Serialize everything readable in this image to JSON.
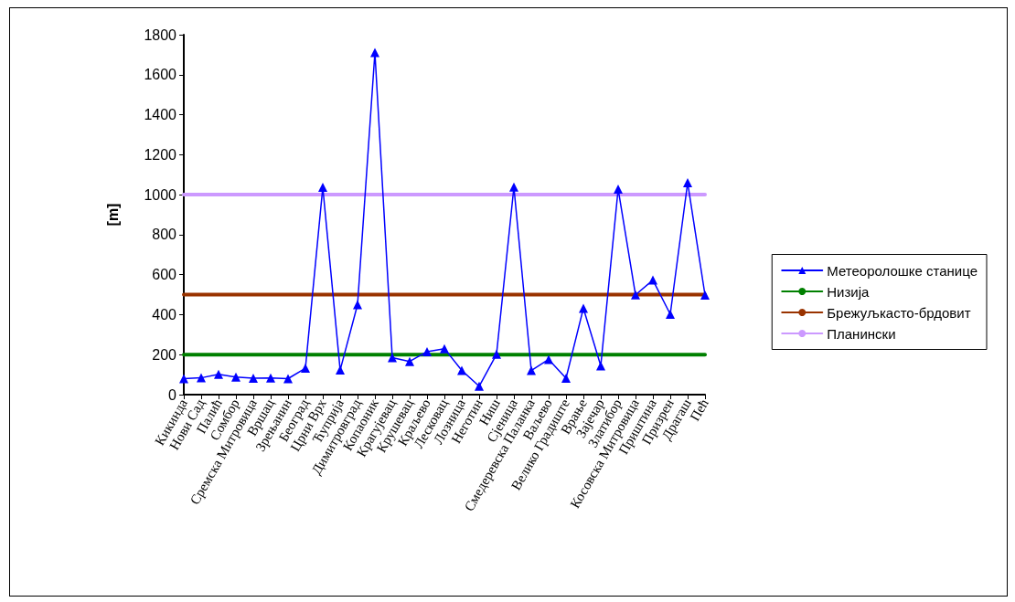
{
  "chart_data": {
    "type": "line",
    "ylabel": "[m]",
    "categories": [
      "Кикинда",
      "Нови Сад",
      "Палић",
      "Сомбор",
      "Сремска Митровица",
      "Вршац",
      "Зрењанин",
      "Београд",
      "Црни Врх",
      "Ћуприја",
      "Димитровград",
      "Копаоник",
      "Крагујевац",
      "Крушевац",
      "Краљево",
      "Лесковац",
      "Лозница",
      "Неготин",
      "Ниш",
      "Сјеница",
      "Смедеревска Паланка",
      "Ваљево",
      "Велико Градиште",
      "Врање",
      "Зајечар",
      "Златибор",
      "Косовска Митровица",
      "Приштина",
      "Призрен",
      "Драгаш",
      "Пећ"
    ],
    "series": [
      {
        "name": "Метеоролошке станице",
        "color": "#0000ff",
        "marker": "triangle",
        "values": [
          80,
          84,
          102,
          88,
          82,
          83,
          80,
          132,
          1037,
          123,
          450,
          1711,
          185,
          166,
          215,
          230,
          121,
          42,
          202,
          1038,
          121,
          176,
          82,
          432,
          144,
          1028,
          499,
          573,
          402,
          1060,
          498
        ]
      },
      {
        "name": "Низија",
        "color": "#008000",
        "marker": "none",
        "values": [
          200,
          200,
          200,
          200,
          200,
          200,
          200,
          200,
          200,
          200,
          200,
          200,
          200,
          200,
          200,
          200,
          200,
          200,
          200,
          200,
          200,
          200,
          200,
          200,
          200,
          200,
          200,
          200,
          200,
          200,
          200
        ]
      },
      {
        "name": "Брежуљкасто-брдовит",
        "color": "#993300",
        "marker": "none",
        "values": [
          500,
          500,
          500,
          500,
          500,
          500,
          500,
          500,
          500,
          500,
          500,
          500,
          500,
          500,
          500,
          500,
          500,
          500,
          500,
          500,
          500,
          500,
          500,
          500,
          500,
          500,
          500,
          500,
          500,
          500,
          500
        ]
      },
      {
        "name": "Планински",
        "color": "#cc99ff",
        "marker": "none",
        "values": [
          1000,
          1000,
          1000,
          1000,
          1000,
          1000,
          1000,
          1000,
          1000,
          1000,
          1000,
          1000,
          1000,
          1000,
          1000,
          1000,
          1000,
          1000,
          1000,
          1000,
          1000,
          1000,
          1000,
          1000,
          1000,
          1000,
          1000,
          1000,
          1000,
          1000,
          1000
        ]
      }
    ],
    "ylim": [
      0,
      1800
    ],
    "yticks": [
      0,
      200,
      400,
      600,
      800,
      1000,
      1200,
      1400,
      1600,
      1800
    ],
    "grid": false,
    "legend": "right"
  }
}
